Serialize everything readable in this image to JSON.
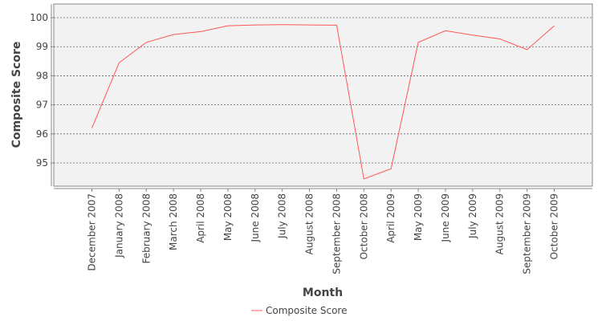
{
  "chart_data": {
    "type": "line",
    "x_label": "Month",
    "y_label": "Composite Score",
    "categories": [
      "December 2007",
      "January 2008",
      "February 2008",
      "March 2008",
      "April 2008",
      "May 2008",
      "June 2008",
      "July 2008",
      "August 2008",
      "September 2008",
      "October 2008",
      "April 2009",
      "May 2009",
      "June 2009",
      "July 2009",
      "August 2009",
      "September 2009",
      "October 2009"
    ],
    "series": [
      {
        "name": "Composite Score",
        "color": "#ff5555",
        "values": [
          96.2,
          98.45,
          99.15,
          99.42,
          99.52,
          99.72,
          99.75,
          99.76,
          99.75,
          99.74,
          94.45,
          94.8,
          99.15,
          99.55,
          99.4,
          99.27,
          98.9,
          99.72
        ]
      }
    ],
    "ylim": [
      94.2,
      100.47
    ],
    "yticks": [
      95,
      96,
      97,
      98,
      99,
      100
    ],
    "grid": true,
    "legend": "bottom"
  }
}
